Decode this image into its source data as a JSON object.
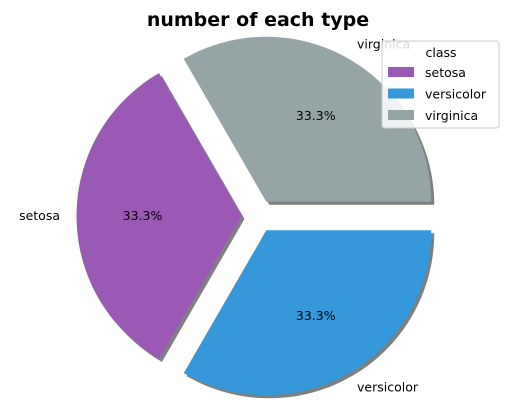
{
  "chart_data": {
    "type": "pie",
    "title": "number of each type",
    "slices": [
      {
        "label": "setosa",
        "value": 50,
        "percent_label": "33.3%",
        "color": "#9b59b6",
        "explode": 0.1
      },
      {
        "label": "versicolor",
        "value": 50,
        "percent_label": "33.3%",
        "color": "#3498db",
        "explode": 0.1
      },
      {
        "label": "virginica",
        "value": 50,
        "percent_label": "33.3%",
        "color": "#95a5a6",
        "explode": 0.1
      }
    ],
    "start_angle_deg": 120,
    "shadow": true,
    "legend": {
      "title": "class",
      "placement": "top-right",
      "entries": [
        "setosa",
        "versicolor",
        "virginica"
      ]
    }
  }
}
